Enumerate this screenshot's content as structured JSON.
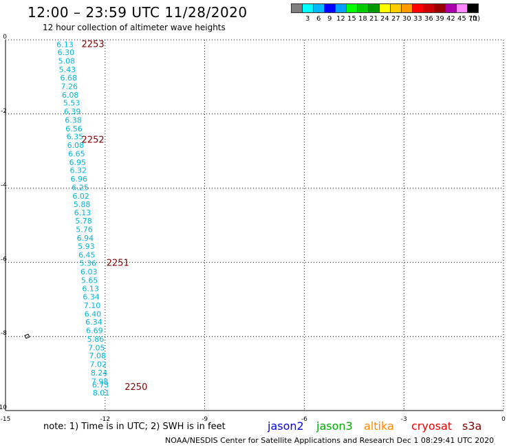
{
  "header": {
    "title": "12:00 – 23:59 UTC 11/28/2020",
    "subtitle": "12 hour collection of altimeter wave heights"
  },
  "legend": {
    "unit": "(ft)",
    "bins": [
      {
        "label": "",
        "color": "#7f7f7f"
      },
      {
        "label": "3",
        "color": "#00ffff"
      },
      {
        "label": "6",
        "color": "#00b7ff"
      },
      {
        "label": "9",
        "color": "#0000ff"
      },
      {
        "label": "12",
        "color": "#00a0ff"
      },
      {
        "label": "15",
        "color": "#00ff00"
      },
      {
        "label": "18",
        "color": "#00cc00"
      },
      {
        "label": "21",
        "color": "#009900"
      },
      {
        "label": "24",
        "color": "#ffff00"
      },
      {
        "label": "27",
        "color": "#ffcc00"
      },
      {
        "label": "30",
        "color": "#ff9900"
      },
      {
        "label": "33",
        "color": "#ff0000"
      },
      {
        "label": "36",
        "color": "#cc0000"
      },
      {
        "label": "39",
        "color": "#990000"
      },
      {
        "label": "42",
        "color": "#aa00aa"
      },
      {
        "label": "45",
        "color": "#ff88ff"
      },
      {
        "label": "70",
        "color": "#000000"
      }
    ]
  },
  "map": {
    "x_ticks": [
      "-15",
      "-12",
      "-9",
      "-6",
      "-3",
      "0"
    ],
    "y_ticks": [
      "0",
      "-2",
      "-4",
      "-6",
      "-8",
      "-10"
    ],
    "wave_color": "#00b4d8",
    "time_color": "#800000",
    "wave_heights": [
      {
        "lon": -13.25,
        "lat": -0.12,
        "value": "6.13"
      },
      {
        "lon": -13.22,
        "lat": -0.33,
        "value": "6.30"
      },
      {
        "lon": -13.2,
        "lat": -0.57,
        "value": "5.08"
      },
      {
        "lon": -13.18,
        "lat": -0.8,
        "value": "5.43"
      },
      {
        "lon": -13.14,
        "lat": -1.02,
        "value": "6.68"
      },
      {
        "lon": -13.12,
        "lat": -1.25,
        "value": "7.26"
      },
      {
        "lon": -13.09,
        "lat": -1.48,
        "value": "6.08"
      },
      {
        "lon": -13.05,
        "lat": -1.7,
        "value": "5.53"
      },
      {
        "lon": -13.03,
        "lat": -1.93,
        "value": "6.39"
      },
      {
        "lon": -13.0,
        "lat": -2.16,
        "value": "6.38"
      },
      {
        "lon": -12.98,
        "lat": -2.39,
        "value": "6.56"
      },
      {
        "lon": -12.95,
        "lat": -2.61,
        "value": "6.35"
      },
      {
        "lon": -12.93,
        "lat": -2.84,
        "value": "6.08"
      },
      {
        "lon": -12.9,
        "lat": -3.07,
        "value": "6.65"
      },
      {
        "lon": -12.87,
        "lat": -3.3,
        "value": "6.95"
      },
      {
        "lon": -12.85,
        "lat": -3.52,
        "value": "6.32"
      },
      {
        "lon": -12.83,
        "lat": -3.75,
        "value": "6.96"
      },
      {
        "lon": -12.79,
        "lat": -3.98,
        "value": "6.25"
      },
      {
        "lon": -12.77,
        "lat": -4.21,
        "value": "6.02"
      },
      {
        "lon": -12.74,
        "lat": -4.43,
        "value": "5.88"
      },
      {
        "lon": -12.72,
        "lat": -4.66,
        "value": "6.13"
      },
      {
        "lon": -12.69,
        "lat": -4.88,
        "value": "5.78"
      },
      {
        "lon": -12.67,
        "lat": -5.11,
        "value": "5.76"
      },
      {
        "lon": -12.64,
        "lat": -5.34,
        "value": "6.94"
      },
      {
        "lon": -12.61,
        "lat": -5.57,
        "value": "5.93"
      },
      {
        "lon": -12.59,
        "lat": -5.8,
        "value": "6.45"
      },
      {
        "lon": -12.56,
        "lat": -6.02,
        "value": "5.36"
      },
      {
        "lon": -12.53,
        "lat": -6.25,
        "value": "6.03"
      },
      {
        "lon": -12.51,
        "lat": -6.48,
        "value": "5.65"
      },
      {
        "lon": -12.48,
        "lat": -6.71,
        "value": "6.13"
      },
      {
        "lon": -12.46,
        "lat": -6.93,
        "value": "6.34"
      },
      {
        "lon": -12.43,
        "lat": -7.16,
        "value": "7.10"
      },
      {
        "lon": -12.41,
        "lat": -7.39,
        "value": "6.40"
      },
      {
        "lon": -12.38,
        "lat": -7.61,
        "value": "6.34"
      },
      {
        "lon": -12.36,
        "lat": -7.84,
        "value": "6.69"
      },
      {
        "lon": -12.33,
        "lat": -8.07,
        "value": "5.86"
      },
      {
        "lon": -12.3,
        "lat": -8.3,
        "value": "7.05"
      },
      {
        "lon": -12.27,
        "lat": -8.52,
        "value": "7.08"
      },
      {
        "lon": -12.25,
        "lat": -8.75,
        "value": "7.02"
      },
      {
        "lon": -12.22,
        "lat": -8.98,
        "value": "8.24"
      },
      {
        "lon": -12.2,
        "lat": -9.21,
        "value": "7.98"
      },
      {
        "lon": -12.18,
        "lat": -9.3,
        "value": "6.73"
      },
      {
        "lon": -12.16,
        "lat": -9.52,
        "value": "8.01"
      }
    ],
    "pass_times": [
      {
        "lon": -12.45,
        "lat": -0.12,
        "value": "2253"
      },
      {
        "lon": -12.45,
        "lat": -2.7,
        "value": "2252"
      },
      {
        "lon": -11.7,
        "lat": -6.02,
        "value": "2251"
      },
      {
        "lon": -11.15,
        "lat": -9.37,
        "value": "2250"
      }
    ]
  },
  "footer": {
    "note": "note:  1) Time is in UTC;  2) SWH is in feet",
    "credit": "NOAA/NESDIS Center for Satellite Applications and Research    Dec  1 08:29:41 UTC 2020",
    "satellites": [
      {
        "name": "jason2",
        "color": "#0000ee"
      },
      {
        "name": "jason3",
        "color": "#00aa00"
      },
      {
        "name": "altika",
        "color": "#ff8800"
      },
      {
        "name": "cryosat",
        "color": "#ee0000"
      },
      {
        "name": "s3a",
        "color": "#800000"
      }
    ]
  }
}
